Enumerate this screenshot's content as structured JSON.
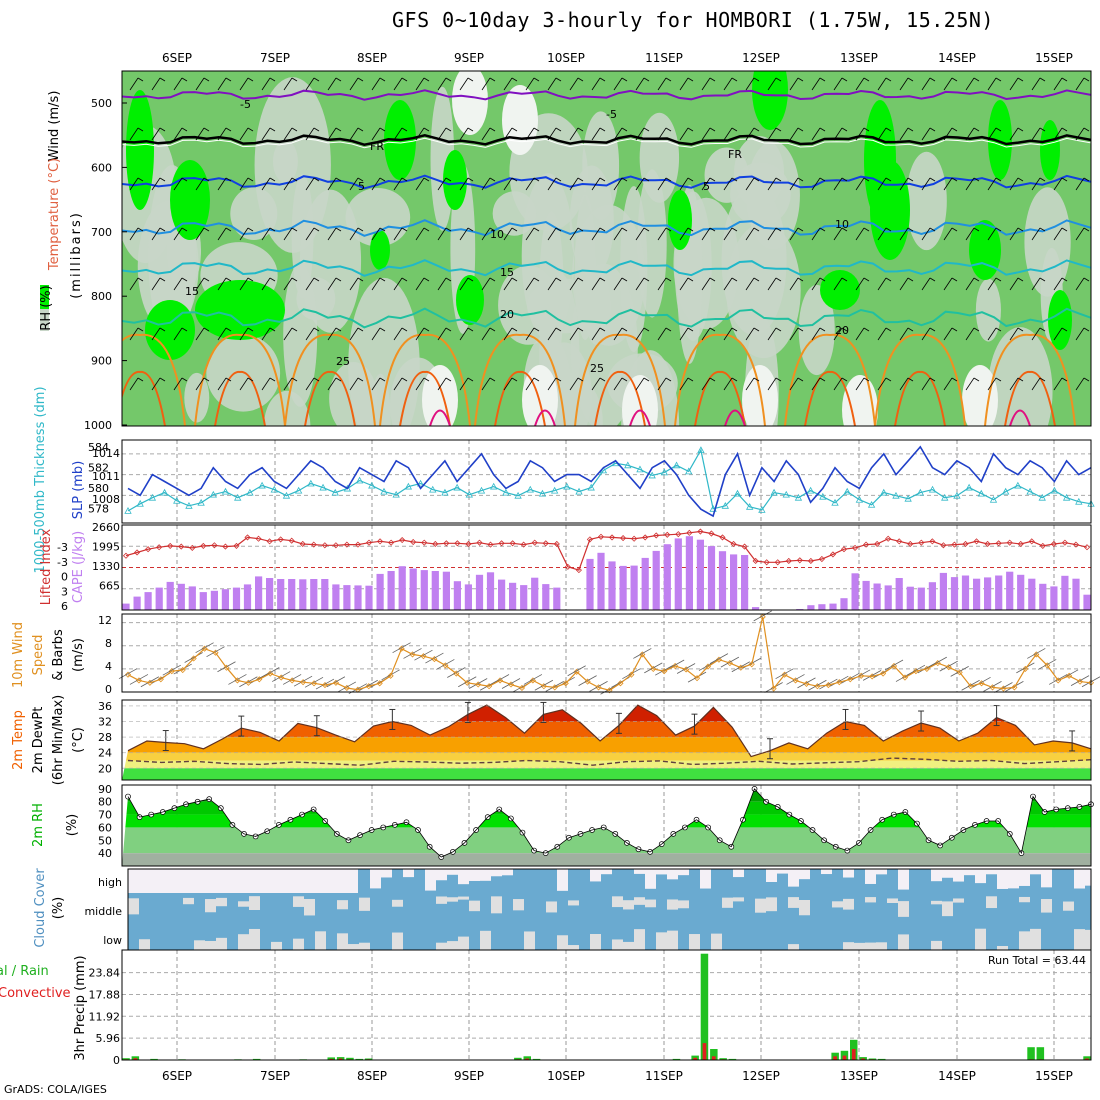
{
  "title": "GFS 0~10day 3-hourly for HOMBORI (1.75W, 15.25N)",
  "footer": "GrADS: COLA/IGES",
  "dates": [
    "6SEP",
    "7SEP",
    "8SEP",
    "9SEP",
    "10SEP",
    "11SEP",
    "12SEP",
    "13SEP",
    "14SEP",
    "15SEP"
  ],
  "colors": {
    "rh_light": "#c8d6c8",
    "rh_mid": "#74c86a",
    "rh_high": "#00f000",
    "slp": "#2040c8",
    "thick": "#30b8c8",
    "lifted": "#d03030",
    "cape": "#c080f0",
    "wind": "#e09020",
    "barb": "#606060",
    "temp_dark": "#d02000",
    "temp_mid": "#f06000",
    "temp_light": "#f8a000",
    "dew_fill": "#f0f080",
    "green_fill": "#40e040",
    "rh2m_dark": "#00a000",
    "rh2m_mid": "#00e000",
    "rh2m_light": "#80d080",
    "cloud_blue": "#6aaad0",
    "cloud_grey": "#e0e0e0",
    "precip_total": "#20c020",
    "precip_conv": "#e02020"
  },
  "chart_data": [
    {
      "type": "heatmap",
      "name": "upper_air",
      "ylabel": "(millibars)",
      "legend_labels": [
        "Wind (m/s)",
        "Temperature (°C)",
        "RH (%)"
      ],
      "y_ticks": [
        "500",
        "600",
        "700",
        "800",
        "900",
        "1000"
      ],
      "contour_labels": [
        "-5",
        "FR",
        "5",
        "10",
        "15",
        "20",
        "25"
      ]
    },
    {
      "type": "line",
      "name": "slp_thickness",
      "ylabel_left": "1000-500mb Thickness (dm)",
      "ylabel_right": "SLP (mb)",
      "y_ticks_left": [
        "584",
        "582",
        "580",
        "578"
      ],
      "y_ticks_right": [
        "1014",
        "1011",
        "1008"
      ],
      "slp": [
        1009,
        1008,
        1011,
        1010,
        1009,
        1008,
        1009,
        1012,
        1010,
        1009,
        1011,
        1012,
        1010,
        1009,
        1011,
        1013,
        1012,
        1010,
        1009,
        1012,
        1011,
        1010,
        1013,
        1012,
        1009,
        1011,
        1013,
        1010,
        1012,
        1014,
        1011,
        1009,
        1010,
        1013,
        1012,
        1010,
        1011,
        1011,
        1010,
        1012,
        1013,
        1011,
        1009,
        1012,
        1013,
        1011,
        1008,
        1006,
        1005,
        1011,
        1014,
        1008,
        1012,
        1010,
        1013,
        1011,
        1007,
        1009,
        1012,
        1010,
        1009,
        1012,
        1014,
        1011,
        1013,
        1015,
        1012,
        1011,
        1013,
        1012,
        1010,
        1014,
        1012,
        1011,
        1013,
        1012,
        1010,
        1013,
        1011,
        1012
      ],
      "thickness": [
        578.5,
        579.2,
        579.8,
        580.3,
        579.5,
        579.0,
        579.3,
        580.1,
        580.4,
        579.8,
        580.3,
        581.0,
        580.6,
        580.0,
        580.5,
        581.2,
        580.8,
        580.3,
        580.7,
        581.5,
        581.0,
        580.4,
        580.1,
        580.9,
        581.2,
        580.6,
        580.3,
        580.8,
        580.1,
        580.5,
        580.9,
        580.3,
        580.0,
        580.6,
        580.2,
        580.5,
        580.9,
        580.4,
        580.8,
        582.5,
        583.2,
        583.0,
        582.6,
        582.0,
        582.3,
        583.0,
        582.4,
        584.5,
        578.7,
        579.0,
        580.2,
        578.9,
        578.6,
        580.3,
        580.1,
        579.8,
        580.5,
        579.9,
        579.3,
        580.4,
        579.6,
        579.1,
        580.3,
        580.0,
        579.7,
        580.3,
        580.6,
        579.8,
        580.0,
        580.8,
        580.2,
        579.6,
        580.4,
        581.0,
        580.4,
        579.8,
        580.5,
        579.8,
        579.4,
        579.2
      ]
    },
    {
      "type": "bar",
      "name": "cape_lifted_index",
      "ylabel_left": "Lifted Index",
      "ylabel_right": "CAPE (J/kg)",
      "y_ticks_left": [
        "-3",
        "-3",
        "0",
        "3",
        "6"
      ],
      "y_ticks_right": [
        "2660",
        "1995",
        "1330",
        "665"
      ],
      "cape": [
        200,
        420,
        560,
        700,
        880,
        820,
        740,
        560,
        600,
        650,
        700,
        800,
        1050,
        1000,
        970,
        970,
        960,
        970,
        970,
        800,
        780,
        770,
        760,
        1130,
        1220,
        1370,
        1300,
        1250,
        1220,
        1200,
        900,
        800,
        1100,
        1180,
        950,
        850,
        780,
        1010,
        810,
        700,
        10,
        0,
        1600,
        1790,
        1520,
        1380,
        1390,
        1630,
        1850,
        2060,
        2240,
        2310,
        2200,
        2000,
        1840,
        1740,
        1720,
        90,
        20,
        10,
        15,
        30,
        150,
        180,
        200,
        370,
        1150,
        910,
        830,
        770,
        1000,
        730,
        700,
        870,
        1160,
        1030,
        1080,
        980,
        1020,
        1080,
        1200,
        1100,
        980,
        820,
        740,
        1070,
        980,
        480
      ],
      "lifted_index": [
        -2,
        -2.5,
        -3,
        -3.3,
        -3.5,
        -3.4,
        -3.2,
        -3.5,
        -3.6,
        -3.4,
        -3.5,
        -4.8,
        -4.6,
        -4.2,
        -4.5,
        -4.3,
        -3.8,
        -3.7,
        -3.6,
        -3.6,
        -3.7,
        -3.7,
        -4.0,
        -4.2,
        -4.0,
        -4.4,
        -4.1,
        -4.0,
        -3.8,
        -3.9,
        -3.9,
        -3.8,
        -4.0,
        -3.7,
        -3.9,
        -3.9,
        -3.7,
        -4.0,
        -3.9,
        -3.8,
        -0.3,
        0.2,
        -4.5,
        -4.9,
        -4.8,
        -4.7,
        -4.6,
        -4.8,
        -5.1,
        -5.2,
        -5.3,
        -5.5,
        -5.7,
        -5.4,
        -4.8,
        -3.8,
        -3.4,
        -1.2,
        -1.0,
        -1.0,
        -1.2,
        -1.3,
        -1.2,
        -1.5,
        -2.2,
        -3.0,
        -3.2,
        -3.7,
        -3.8,
        -4.6,
        -4.2,
        -3.8,
        -4.0,
        -4.2,
        -3.6,
        -3.7,
        -3.8,
        -4.2,
        -3.8,
        -3.9,
        -4.0,
        -3.8,
        -4.2,
        -3.5,
        -3.8,
        -4.0,
        -3.7,
        -3.3
      ]
    },
    {
      "type": "line",
      "name": "wind_10m",
      "ylabel": "10m Wind Speed & Barbs (m/s)",
      "y_ticks": [
        "12",
        "8",
        "4",
        "0"
      ],
      "speed": [
        3.0,
        2.0,
        1.6,
        2.2,
        3.6,
        3.8,
        5.8,
        7.5,
        6.8,
        4.2,
        2.0,
        1.6,
        2.2,
        3.2,
        2.5,
        2.0,
        1.7,
        1.5,
        1.2,
        1.6,
        0.7,
        0.4,
        1.0,
        1.5,
        2.8,
        7.5,
        6.5,
        6.2,
        5.7,
        4.6,
        3.2,
        1.6,
        1.3,
        1.0,
        2.0,
        1.3,
        0.7,
        2.0,
        1.0,
        0.8,
        1.5,
        3.5,
        1.8,
        0.8,
        0.3,
        1.5,
        3.0,
        6.5,
        4.0,
        3.6,
        4.5,
        3.9,
        2.4,
        4.4,
        5.6,
        5.0,
        4.2,
        4.8,
        13.0,
        0.6,
        3.0,
        2.0,
        1.4,
        1.0,
        1.2,
        1.7,
        2.2,
        2.8,
        2.7,
        3.2,
        4.5,
        2.5,
        3.6,
        4.0,
        5.0,
        4.3,
        3.4,
        1.0,
        1.5,
        0.8,
        0.6,
        0.8,
        4.0,
        6.5,
        4.6,
        2.0,
        2.8,
        1.8,
        1.6
      ]
    },
    {
      "type": "area",
      "name": "temp_2m",
      "ylabel": "2m Temp 2m DewPt (6hr Min/Max) (°C)",
      "y_ticks": [
        "36",
        "32",
        "28",
        "24",
        "20"
      ],
      "temp": [
        24.5,
        27.0,
        26.6,
        26.3,
        25.0,
        27.5,
        30.3,
        29.2,
        27.0,
        31.5,
        30.4,
        28.5,
        26.8,
        30.8,
        32.0,
        31.0,
        28.5,
        30.7,
        33.8,
        36.2,
        33.0,
        29.0,
        33.8,
        35.0,
        31.5,
        27.0,
        31.0,
        36.2,
        33.5,
        28.5,
        30.8,
        35.6,
        30.5,
        23.0,
        24.5,
        26.5,
        25.0,
        29.0,
        32.0,
        31.0,
        27.0,
        29.5,
        31.6,
        30.3,
        27.0,
        29.0,
        33.0,
        31.0,
        26.0,
        27.0,
        26.5,
        25.0
      ],
      "dewpt": [
        22.0,
        21.5,
        21.8,
        21.2,
        21.0,
        21.6,
        21.2,
        20.8,
        21.8,
        21.6,
        21.3,
        21.5,
        22.0,
        21.7,
        20.8,
        21.7,
        21.9,
        21.0,
        21.3,
        21.8,
        21.1,
        21.4,
        21.7,
        22.6,
        22.3,
        21.8,
        22.0,
        21.2,
        21.7,
        22.2
      ]
    },
    {
      "type": "area",
      "name": "rh_2m",
      "ylabel": "2m RH (%)",
      "y_ticks": [
        "90",
        "80",
        "70",
        "60",
        "50",
        "40"
      ],
      "rh": [
        84,
        68,
        70,
        72,
        75,
        78,
        80,
        82,
        75,
        62,
        55,
        53,
        57,
        62,
        66,
        70,
        74,
        65,
        55,
        50,
        54,
        58,
        60,
        62,
        64,
        58,
        45,
        37,
        41,
        48,
        58,
        68,
        74,
        67,
        56,
        42,
        40,
        45,
        52,
        55,
        58,
        60,
        55,
        48,
        43,
        41,
        47,
        55,
        60,
        66,
        60,
        50,
        45,
        66,
        90,
        80,
        76,
        70,
        65,
        58,
        50,
        45,
        42,
        48,
        58,
        66,
        70,
        72,
        63,
        50,
        46,
        52,
        58,
        62,
        65,
        65,
        55,
        40,
        84,
        72,
        74,
        75,
        76,
        78
      ]
    },
    {
      "type": "heatmap",
      "name": "cloud_cover",
      "ylabel": "Cloud Cover (%)",
      "levels": [
        "high",
        "middle",
        "low"
      ]
    },
    {
      "type": "bar",
      "name": "precip_3hr",
      "ylabel": "3hr Precip (mm)",
      "legend_labels": [
        "Total / Rain",
        "Convective"
      ],
      "y_ticks": [
        "23.84",
        "17.88",
        "11.92",
        "5.96",
        "0"
      ],
      "run_total": "Run Total = 63.44",
      "total": [
        0.5,
        1.0,
        0,
        0.3,
        0,
        0,
        0.2,
        0,
        0,
        0,
        0,
        0,
        0.2,
        0,
        0.3,
        0,
        0,
        0,
        0,
        0.2,
        0,
        0,
        0.7,
        0.8,
        0.6,
        0.3,
        0.4,
        0,
        0,
        0,
        0,
        0,
        0,
        0,
        0,
        0,
        0,
        0,
        0,
        0,
        0,
        0,
        0.6,
        1.0,
        0.3,
        0,
        0,
        0,
        0,
        0,
        0,
        0,
        0,
        0,
        0,
        0,
        0,
        0,
        0,
        0.3,
        0,
        1.2,
        29.0,
        3.0,
        0.5,
        0.3,
        0,
        0,
        0,
        0,
        0,
        0,
        0,
        0,
        0,
        0,
        2.0,
        2.5,
        5.5,
        0.8,
        0.4,
        0.3,
        0,
        0,
        0,
        0,
        0,
        0,
        0,
        0,
        0,
        0,
        0,
        0,
        0,
        0,
        0,
        3.5,
        3.5,
        0,
        0,
        0,
        0,
        1.0
      ],
      "convective": [
        0.2,
        0.5,
        0,
        0.1,
        0,
        0,
        0,
        0,
        0,
        0,
        0,
        0,
        0,
        0,
        0.1,
        0,
        0,
        0,
        0,
        0,
        0,
        0,
        0.3,
        0.4,
        0.2,
        0.1,
        0.2,
        0,
        0,
        0,
        0,
        0,
        0,
        0,
        0,
        0,
        0,
        0,
        0,
        0,
        0,
        0,
        0.2,
        0.4,
        0.1,
        0,
        0,
        0,
        0,
        0,
        0,
        0,
        0,
        0,
        0,
        0,
        0,
        0,
        0,
        0.1,
        0,
        0.6,
        4.6,
        1.0,
        0.2,
        0.1,
        0,
        0,
        0,
        0,
        0,
        0,
        0,
        0,
        0,
        0,
        1.0,
        1.2,
        3.0,
        0.4,
        0.2,
        0.1,
        0,
        0,
        0,
        0,
        0,
        0,
        0,
        0,
        0,
        0,
        0,
        0,
        0,
        0,
        0,
        0.2,
        0.2,
        0,
        0,
        0,
        0,
        0.4
      ]
    }
  ]
}
